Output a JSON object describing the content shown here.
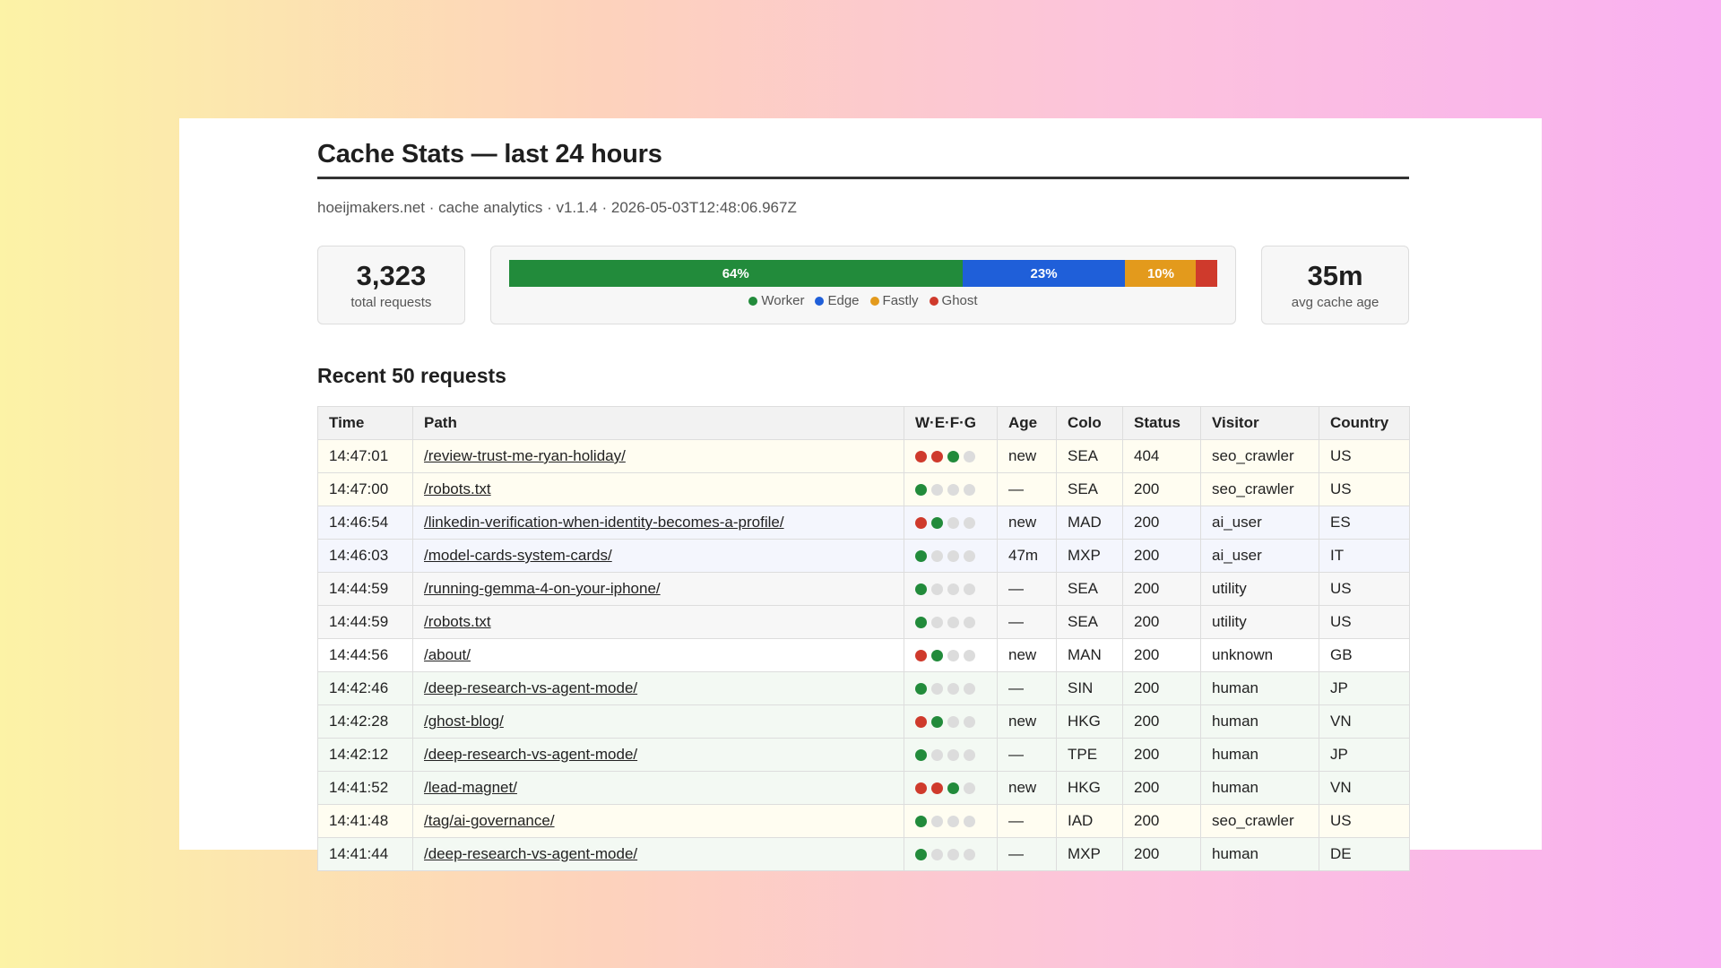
{
  "header": {
    "title": "Cache Stats — last 24 hours",
    "subtitle": "hoeijmakers.net · cache analytics · v1.1.4 · 2026-05-03T12:48:06.967Z"
  },
  "stats": {
    "total_requests": "3,323",
    "total_requests_label": "total requests",
    "avg_cache_age": "35m",
    "avg_cache_age_label": "avg cache age"
  },
  "distribution": {
    "segments": [
      {
        "name": "Worker",
        "percent": 64,
        "label": "64%",
        "color": "#228b3b"
      },
      {
        "name": "Edge",
        "percent": 23,
        "label": "23%",
        "color": "#1f5fd9"
      },
      {
        "name": "Fastly",
        "percent": 10,
        "label": "10%",
        "color": "#e39a1c"
      },
      {
        "name": "Ghost",
        "percent": 3,
        "label": "",
        "color": "#cf3a2c"
      }
    ]
  },
  "colors": {
    "green": "#228b3b",
    "red": "#cf3a2c",
    "grey": "#dcdcdc"
  },
  "table": {
    "title": "Recent 50 requests",
    "columns": [
      "Time",
      "Path",
      "W·E·F·G",
      "Age",
      "Colo",
      "Status",
      "Visitor",
      "Country"
    ],
    "rows": [
      {
        "time": "14:47:01",
        "path": "/review-trust-me-ryan-holiday/",
        "dots": [
          "r",
          "r",
          "g",
          "x"
        ],
        "age": "new",
        "colo": "SEA",
        "status": "404",
        "visitor": "seo_crawler",
        "country": "US",
        "bg": "#fffdf1"
      },
      {
        "time": "14:47:00",
        "path": "/robots.txt",
        "dots": [
          "g",
          "x",
          "x",
          "x"
        ],
        "age": "—",
        "colo": "SEA",
        "status": "200",
        "visitor": "seo_crawler",
        "country": "US",
        "bg": "#fffdf1"
      },
      {
        "time": "14:46:54",
        "path": "/linkedin-verification-when-identity-becomes-a-profile/",
        "dots": [
          "r",
          "g",
          "x",
          "x"
        ],
        "age": "new",
        "colo": "MAD",
        "status": "200",
        "visitor": "ai_user",
        "country": "ES",
        "bg": "#f4f6fd"
      },
      {
        "time": "14:46:03",
        "path": "/model-cards-system-cards/",
        "dots": [
          "g",
          "x",
          "x",
          "x"
        ],
        "age": "47m",
        "colo": "MXP",
        "status": "200",
        "visitor": "ai_user",
        "country": "IT",
        "bg": "#f4f6fd"
      },
      {
        "time": "14:44:59",
        "path": "/running-gemma-4-on-your-iphone/",
        "dots": [
          "g",
          "x",
          "x",
          "x"
        ],
        "age": "—",
        "colo": "SEA",
        "status": "200",
        "visitor": "utility",
        "country": "US",
        "bg": "#f7f7f7"
      },
      {
        "time": "14:44:59",
        "path": "/robots.txt",
        "dots": [
          "g",
          "x",
          "x",
          "x"
        ],
        "age": "—",
        "colo": "SEA",
        "status": "200",
        "visitor": "utility",
        "country": "US",
        "bg": "#f7f7f7"
      },
      {
        "time": "14:44:56",
        "path": "/about/",
        "dots": [
          "r",
          "g",
          "x",
          "x"
        ],
        "age": "new",
        "colo": "MAN",
        "status": "200",
        "visitor": "unknown",
        "country": "GB",
        "bg": "#ffffff"
      },
      {
        "time": "14:42:46",
        "path": "/deep-research-vs-agent-mode/",
        "dots": [
          "g",
          "x",
          "x",
          "x"
        ],
        "age": "—",
        "colo": "SIN",
        "status": "200",
        "visitor": "human",
        "country": "JP",
        "bg": "#f3f9f3"
      },
      {
        "time": "14:42:28",
        "path": "/ghost-blog/",
        "dots": [
          "r",
          "g",
          "x",
          "x"
        ],
        "age": "new",
        "colo": "HKG",
        "status": "200",
        "visitor": "human",
        "country": "VN",
        "bg": "#f3f9f3"
      },
      {
        "time": "14:42:12",
        "path": "/deep-research-vs-agent-mode/",
        "dots": [
          "g",
          "x",
          "x",
          "x"
        ],
        "age": "—",
        "colo": "TPE",
        "status": "200",
        "visitor": "human",
        "country": "JP",
        "bg": "#f3f9f3"
      },
      {
        "time": "14:41:52",
        "path": "/lead-magnet/",
        "dots": [
          "r",
          "r",
          "g",
          "x"
        ],
        "age": "new",
        "colo": "HKG",
        "status": "200",
        "visitor": "human",
        "country": "VN",
        "bg": "#f3f9f3"
      },
      {
        "time": "14:41:48",
        "path": "/tag/ai-governance/",
        "dots": [
          "g",
          "x",
          "x",
          "x"
        ],
        "age": "—",
        "colo": "IAD",
        "status": "200",
        "visitor": "seo_crawler",
        "country": "US",
        "bg": "#fffdf1"
      },
      {
        "time": "14:41:44",
        "path": "/deep-research-vs-agent-mode/",
        "dots": [
          "g",
          "x",
          "x",
          "x"
        ],
        "age": "—",
        "colo": "MXP",
        "status": "200",
        "visitor": "human",
        "country": "DE",
        "bg": "#f3f9f3"
      }
    ]
  }
}
